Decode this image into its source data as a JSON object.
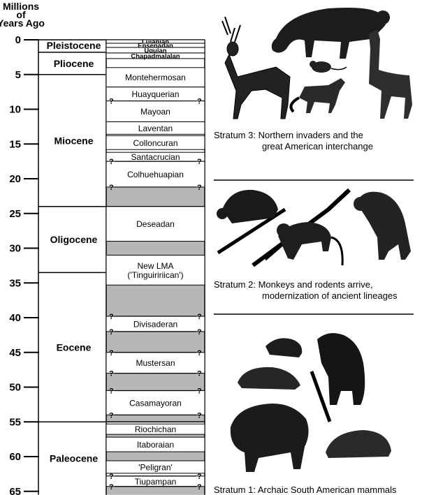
{
  "axis": {
    "title_lines": [
      "Millions",
      "of",
      "Years Ago"
    ],
    "ticks": [
      0,
      5,
      10,
      15,
      20,
      25,
      30,
      35,
      40,
      45,
      50,
      55,
      60,
      65
    ]
  },
  "epochs": [
    {
      "name": "Pleistocene",
      "start": 0,
      "end": 1.8
    },
    {
      "name": "Pliocene",
      "start": 1.8,
      "end": 5
    },
    {
      "name": "Miocene",
      "start": 5,
      "end": 24
    },
    {
      "name": "Oligocene",
      "start": 24,
      "end": 33.5
    },
    {
      "name": "Eocene",
      "start": 33.5,
      "end": 55
    },
    {
      "name": "Paleocene",
      "start": 55,
      "end": 65.5
    }
  ],
  "land_mammal_ages": [
    {
      "name": "Lujanian",
      "start": 0,
      "end": 0.5,
      "small": true
    },
    {
      "name": "Ensenadan",
      "start": 0.5,
      "end": 1.1,
      "small": true
    },
    {
      "name": "Uquian",
      "start": 1.1,
      "end": 1.9,
      "small": true
    },
    {
      "name": "Chapadmalalan",
      "start": 1.9,
      "end": 2.7,
      "small": true
    },
    {
      "name": "Montehermosan",
      "start": 4,
      "end": 6.8
    },
    {
      "name": "Huayquerian",
      "start": 6.8,
      "end": 8.8
    },
    {
      "name": "Mayoan",
      "start": 8.8,
      "end": 11.8,
      "q_top": true,
      "q_bottom": false
    },
    {
      "name": "Laventan",
      "start": 11.8,
      "end": 13.6
    },
    {
      "name": "Colloncuran",
      "start": 13.8,
      "end": 15.8
    },
    {
      "name": "Santacrucian",
      "start": 16.2,
      "end": 17.5
    },
    {
      "name": "Colhuehuapian",
      "start": 17.5,
      "end": 21.2,
      "q_top": true,
      "q_bottom": true
    },
    {
      "name": "Deseadan",
      "start": 24,
      "end": 29
    },
    {
      "name": "New LMA",
      "name2": "('Tinguiririican')",
      "start": 31,
      "end": 35.3
    },
    {
      "name": "Divisaderan",
      "start": 39.8,
      "end": 42,
      "q_top": true,
      "q_bottom": true
    },
    {
      "name": "Mustersan",
      "start": 45,
      "end": 48,
      "q_top": true,
      "q_bottom": true
    },
    {
      "name": "Casamayoran",
      "start": 50.5,
      "end": 54,
      "q_top": true,
      "q_bottom": true
    },
    {
      "name": "Riochichan",
      "start": 55.3,
      "end": 56.8
    },
    {
      "name": "Itaboraian",
      "start": 57.2,
      "end": 59.3
    },
    {
      "name": "'Peligran'",
      "start": 60.6,
      "end": 62.4
    },
    {
      "name": "Tiupampan",
      "start": 62.8,
      "end": 64.3,
      "q_top": true,
      "q_bottom": true
    }
  ],
  "gaps": [
    {
      "start": 8.8,
      "end": 9.9
    },
    {
      "start": 19.2,
      "end": 21.2
    },
    {
      "start": 21.2,
      "end": 24
    },
    {
      "start": 29,
      "end": 31
    },
    {
      "start": 35.3,
      "end": 39.8
    },
    {
      "start": 42,
      "end": 45
    },
    {
      "start": 48,
      "end": 50.5
    },
    {
      "start": 54,
      "end": 55
    },
    {
      "start": 56.8,
      "end": 57.2
    },
    {
      "start": 59.3,
      "end": 60.6
    },
    {
      "start": 64.3,
      "end": 65.5
    }
  ],
  "strata": [
    {
      "caption_lines": [
        "Stratum 3: Northern invaders and the",
        "great American interchange"
      ]
    },
    {
      "caption_lines": [
        "Stratum 2: Monkeys and rodents arrive,",
        "modernization of ancient lineages"
      ]
    },
    {
      "caption_lines": [
        "Stratum 1: Archaic South American mammals"
      ]
    }
  ]
}
